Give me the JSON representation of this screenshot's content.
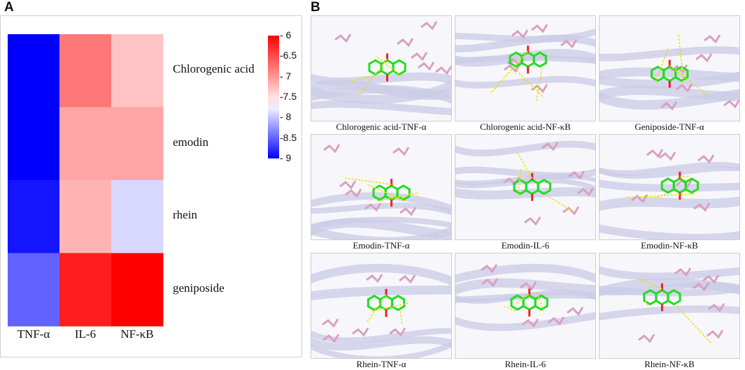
{
  "panel_labels": {
    "a": "A",
    "b": "B"
  },
  "chart_data": {
    "type": "heatmap",
    "rows": [
      "Chlorogenic acid",
      "emodin",
      "rhein",
      "geniposide"
    ],
    "columns": [
      "TNF-α",
      "IL-6",
      "NF-κB"
    ],
    "values": [
      [
        -9.0,
        -6.8,
        -7.3
      ],
      [
        -9.0,
        -7.1,
        -7.1
      ],
      [
        -8.9,
        -7.2,
        -7.9
      ],
      [
        -8.5,
        -6.2,
        -6.0
      ]
    ],
    "colorscale": {
      "min": -9,
      "max": -6,
      "low_color": "#0000ff",
      "mid_color": "#ffffff",
      "high_color": "#ff0000",
      "mid_value": -7.7
    },
    "colorbar_ticks": [
      "- 6",
      "-6.5",
      "- 7",
      "-7.5",
      "- 8",
      "-8.5",
      "- 9"
    ]
  },
  "docking": {
    "captions": [
      "Chlorogenic acid-TNF-α",
      "Chlorogenic acid-NF-κB",
      "Geniposide-TNF-α",
      "Emodin-TNF-α",
      "Emodin-IL-6",
      "Emodin-NF-κB",
      "Rhein-TNF-α",
      "Rhein-IL-6",
      "Rhein-NF-κB"
    ],
    "colors": {
      "ligand": "#22dd22",
      "oxygen": "#ee2222",
      "residue": "#d9a0c0",
      "ribbon": "#c9cbe6",
      "hbond": "#e8e000"
    }
  }
}
